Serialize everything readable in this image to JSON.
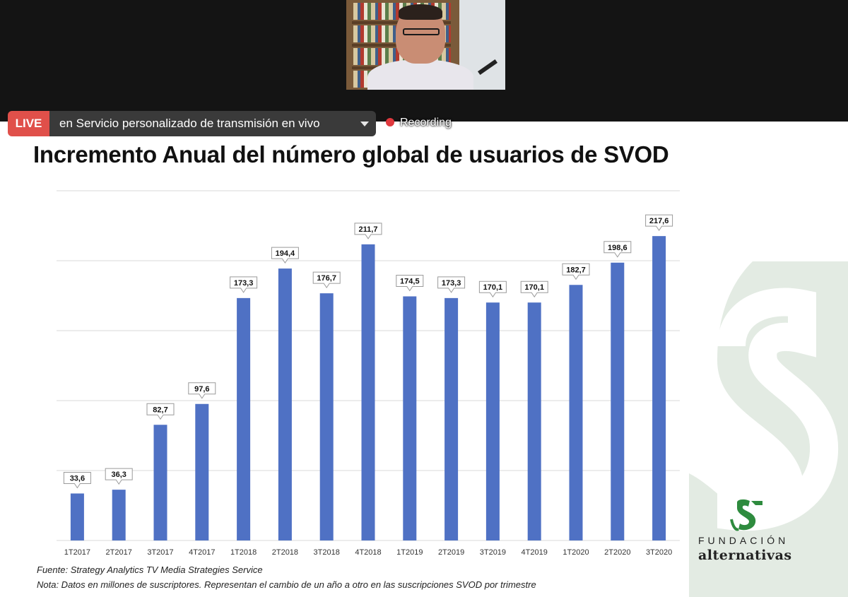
{
  "live": {
    "badge": "LIVE",
    "destination": "en Servicio personalizado de transmisión en vivo",
    "recording": "Recording"
  },
  "slide": {
    "title": "Incremento Anual del número global de usuarios de SVOD",
    "source": "Fuente: Strategy Analytics TV Media Strategies Service",
    "note": "Nota: Datos en millones de suscriptores. Representan el cambio de un año a otro en las suscripciones SVOD por trimestre",
    "logo_line1": "FUNDACIÓN",
    "logo_line2": "alternativas"
  },
  "colors": {
    "bar": "#4f71c4",
    "grid": "#d9d9d9",
    "live_red": "#e0504a",
    "watermark": "#dfe8df",
    "logo_green": "#2e8b3e"
  },
  "chart_data": {
    "type": "bar",
    "categories": [
      "1T2017",
      "2T2017",
      "3T2017",
      "4T2017",
      "1T2018",
      "2T2018",
      "3T2018",
      "4T2018",
      "1T2019",
      "2T2019",
      "3T2019",
      "4T2019",
      "1T2020",
      "2T2020",
      "3T2020"
    ],
    "values": [
      33.6,
      36.3,
      82.7,
      97.6,
      173.3,
      194.4,
      176.7,
      211.7,
      174.5,
      173.3,
      170.1,
      170.1,
      182.7,
      198.6,
      217.6
    ],
    "labels": [
      "33,6",
      "36,3",
      "82,7",
      "97,6",
      "173,3",
      "194,4",
      "176,7",
      "211,7",
      "174,5",
      "173,3",
      "170,1",
      "170,1",
      "182,7",
      "198,6",
      "217,6"
    ],
    "ylim": [
      0,
      250
    ],
    "grid": true,
    "legend": "none"
  }
}
